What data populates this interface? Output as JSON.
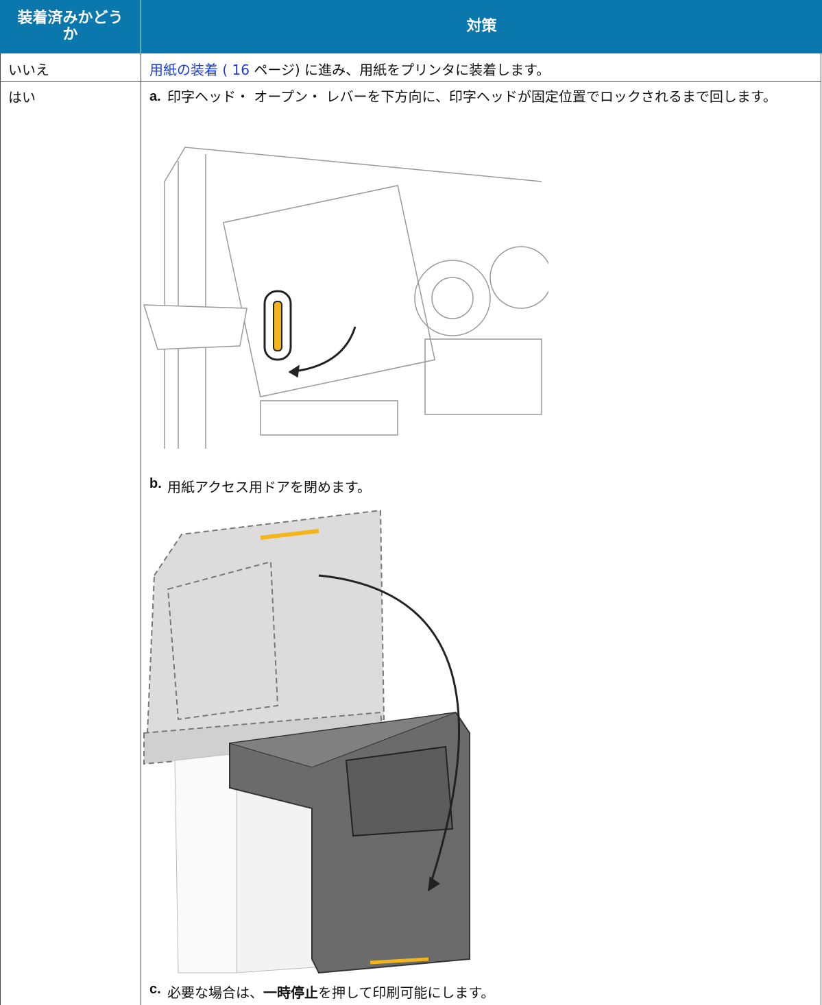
{
  "table": {
    "header": [
      "装着済みかどうか",
      "対策"
    ],
    "rows": [
      {
        "status": "いいえ",
        "link": "用紙の装着 ( 16",
        "action": "ページ) に進み、用紙をプリンタに装着します。"
      },
      {
        "status": "はい",
        "steps": [
          {
            "label": "a.",
            "text": "印字ヘッド・ オープン・ レバーを下方向に、印字ヘッドが固定位置でロックされるまで回します。"
          },
          {
            "label": "b.",
            "text": "用紙アクセス用ドアを閉めます。"
          },
          {
            "label": "c.",
            "text": "必要な場合は、",
            "bold": "一時停止",
            "after": "を押して印刷可能にします。"
          }
        ]
      }
    ]
  }
}
